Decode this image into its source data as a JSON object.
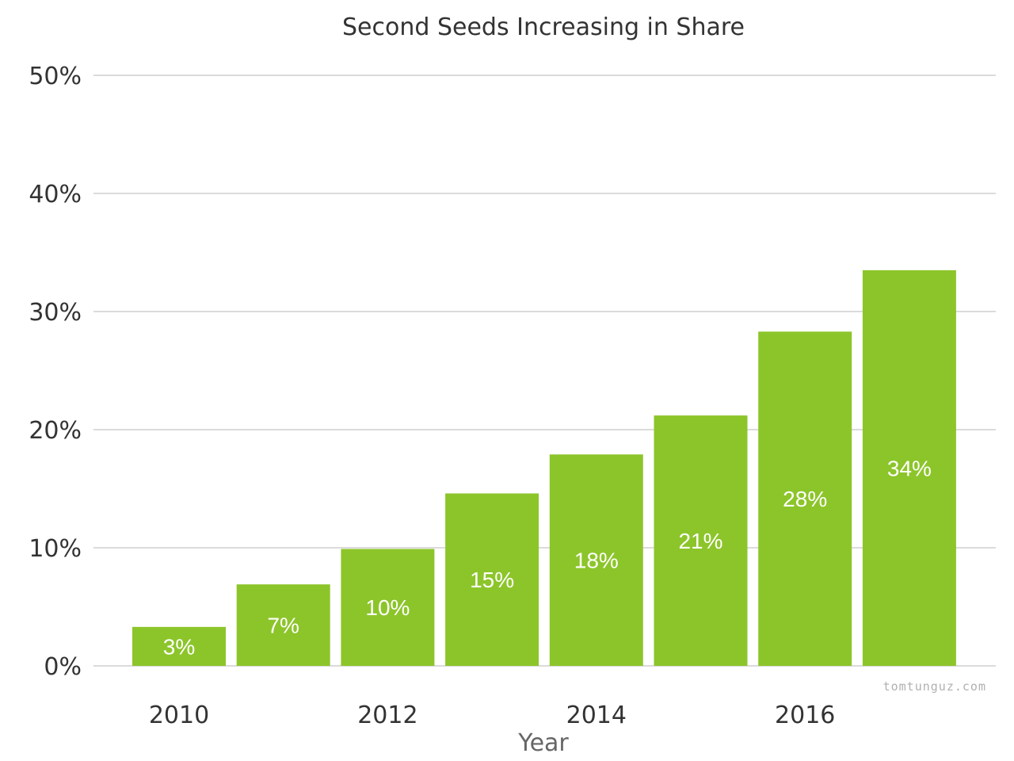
{
  "chart_data": {
    "type": "bar",
    "title": "Second Seeds Increasing in Share",
    "xlabel": "Year",
    "ylabel": "",
    "x": [
      2010,
      2011,
      2012,
      2013,
      2014,
      2015,
      2016,
      2017
    ],
    "values": [
      3.3,
      6.9,
      9.9,
      14.6,
      17.9,
      21.2,
      28.3,
      33.5
    ],
    "data_labels": [
      "3%",
      "7%",
      "10%",
      "15%",
      "18%",
      "21%",
      "28%",
      "34%"
    ],
    "x_ticks": [
      "2010",
      "2012",
      "2014",
      "2016"
    ],
    "x_tick_values": [
      2010,
      2012,
      2014,
      2016
    ],
    "y_ticks": [
      "0%",
      "10%",
      "20%",
      "30%",
      "40%",
      "50%"
    ],
    "y_tick_values": [
      0,
      10,
      20,
      30,
      40,
      50
    ],
    "ylim": [
      0,
      50
    ],
    "grid": true,
    "legend": "none",
    "bar_color": "#8cc52a"
  },
  "credit": "tomtunguz.com"
}
